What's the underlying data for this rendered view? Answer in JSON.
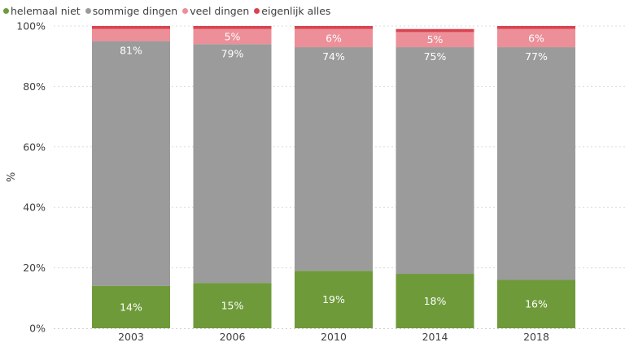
{
  "chart_data": {
    "type": "bar",
    "stacked": true,
    "categories": [
      "2003",
      "2006",
      "2010",
      "2014",
      "2018"
    ],
    "series": [
      {
        "name": "helemaal niet",
        "color": "#6e9a3a",
        "values": [
          14,
          15,
          19,
          18,
          16
        ]
      },
      {
        "name": "sommige dingen",
        "color": "#9b9b9b",
        "values": [
          81,
          79,
          74,
          75,
          77
        ]
      },
      {
        "name": "veel dingen",
        "color": "#ec8f98",
        "values": [
          4,
          5,
          6,
          5,
          6
        ]
      },
      {
        "name": "eigenlijk alles",
        "color": "#d9434f",
        "values": [
          1,
          1,
          1,
          1,
          1
        ]
      }
    ],
    "data_labels": [
      [
        "14%",
        "81%",
        "",
        ""
      ],
      [
        "15%",
        "79%",
        "5%",
        ""
      ],
      [
        "19%",
        "74%",
        "6%",
        ""
      ],
      [
        "18%",
        "75%",
        "5%",
        ""
      ],
      [
        "16%",
        "77%",
        "6%",
        ""
      ]
    ],
    "ylabel": "%",
    "xlabel": "",
    "ylim": [
      0,
      100
    ],
    "yticks": [
      0,
      20,
      40,
      60,
      80,
      100
    ],
    "ytick_labels": [
      "0%",
      "20%",
      "40%",
      "60%",
      "80%",
      "100%"
    ],
    "grid": true,
    "legend_position": "top-left"
  }
}
